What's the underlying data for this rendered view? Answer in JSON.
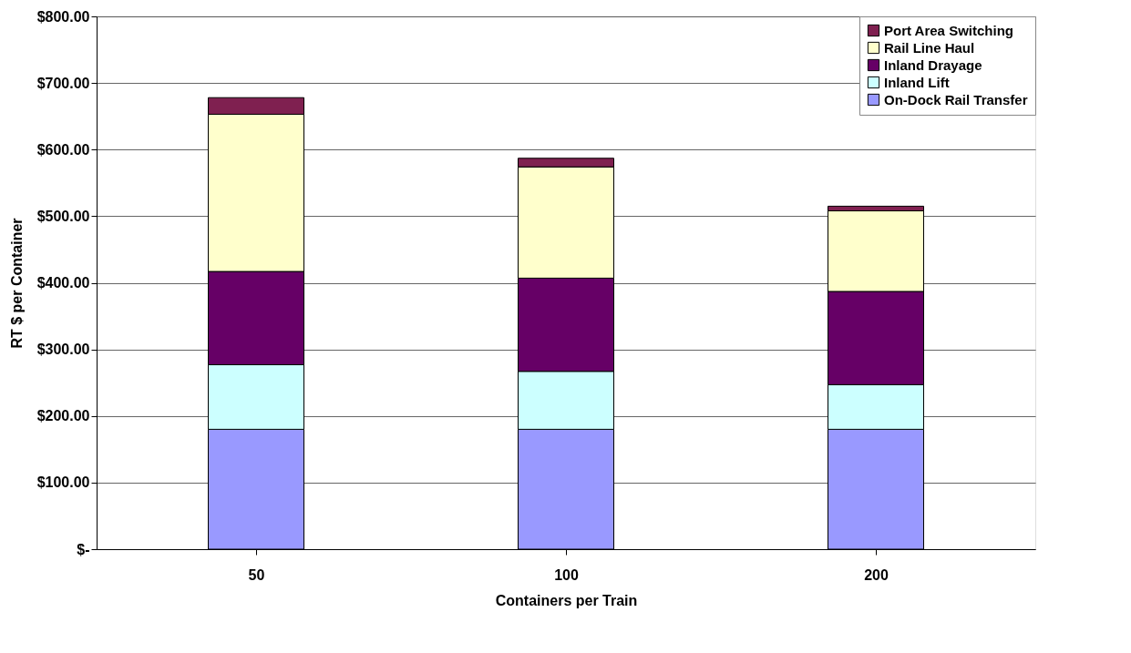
{
  "chart_data": {
    "type": "bar",
    "stacked": true,
    "xlabel": "Containers per Train",
    "ylabel": "RT $ per Container",
    "categories": [
      "50",
      "100",
      "200"
    ],
    "series": [
      {
        "name": "On-Dock Rail Transfer",
        "color": "#9999ff",
        "values": [
          180,
          180,
          180
        ]
      },
      {
        "name": "Inland Lift",
        "color": "#ccffff",
        "values": [
          97,
          87,
          67
        ]
      },
      {
        "name": "Inland Drayage",
        "color": "#660066",
        "values": [
          140,
          140,
          140
        ]
      },
      {
        "name": "Rail Line Haul",
        "color": "#ffffcc",
        "values": [
          236,
          167,
          121
        ]
      },
      {
        "name": "Port Area Switching",
        "color": "#7f2050",
        "values": [
          25,
          13,
          7
        ]
      }
    ],
    "ylim": [
      0,
      800
    ],
    "yticks": [
      {
        "value": 0,
        "label": "$-"
      },
      {
        "value": 100,
        "label": "$100.00"
      },
      {
        "value": 200,
        "label": "$200.00"
      },
      {
        "value": 300,
        "label": "$300.00"
      },
      {
        "value": 400,
        "label": "$400.00"
      },
      {
        "value": 500,
        "label": "$500.00"
      },
      {
        "value": 600,
        "label": "$600.00"
      },
      {
        "value": 700,
        "label": "$700.00"
      },
      {
        "value": 800,
        "label": "$800.00"
      }
    ],
    "grid": "y",
    "legend": "top right"
  }
}
